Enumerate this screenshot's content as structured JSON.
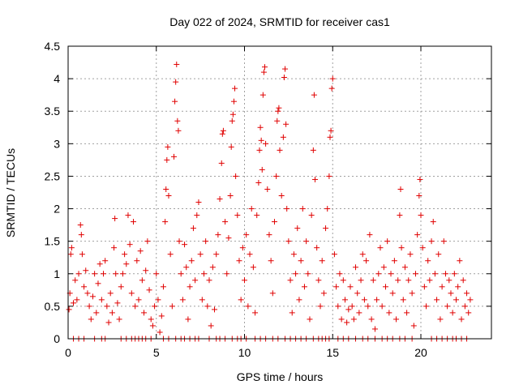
{
  "chart_data": {
    "type": "scatter",
    "title": "Day 022 of 2024, SRMTID for receiver cas1",
    "xlabel": "GPS time / hours",
    "ylabel": "SRMTID / TECUs",
    "xlim": [
      0,
      24
    ],
    "ylim": [
      0,
      4.5
    ],
    "xticks": [
      0,
      5,
      10,
      15,
      20
    ],
    "xtick_labels": [
      "0",
      "5",
      "10",
      "15",
      "20"
    ],
    "yticks": [
      0,
      0.5,
      1,
      1.5,
      2,
      2.5,
      3,
      3.5,
      4,
      4.5
    ],
    "ytick_labels": [
      "0",
      "0.5",
      "1",
      "1.5",
      "2",
      "2.5",
      "3",
      "3.5",
      "4",
      "4.5"
    ],
    "grid": true,
    "marker": "+",
    "color": "#e00000",
    "series": [
      {
        "name": "SRMTID",
        "points": [
          [
            0.05,
            0.45
          ],
          [
            0.1,
            0.7
          ],
          [
            0.15,
            1.3
          ],
          [
            0.2,
            1.4
          ],
          [
            0.3,
            0.55
          ],
          [
            0.4,
            0.9
          ],
          [
            0.5,
            0.6
          ],
          [
            0.6,
            1.0
          ],
          [
            0.7,
            1.75
          ],
          [
            0.75,
            1.6
          ],
          [
            0.8,
            1.3
          ],
          [
            0.9,
            0.8
          ],
          [
            1.0,
            1.05
          ],
          [
            1.1,
            0.7
          ],
          [
            1.2,
            0.5
          ],
          [
            1.3,
            0.3
          ],
          [
            1.4,
            0.65
          ],
          [
            1.5,
            1.0
          ],
          [
            1.6,
            0.4
          ],
          [
            1.7,
            0.85
          ],
          [
            1.8,
            1.15
          ],
          [
            1.9,
            0.6
          ],
          [
            2.0,
            1.0
          ],
          [
            2.1,
            1.2
          ],
          [
            2.2,
            0.5
          ],
          [
            2.3,
            0.25
          ],
          [
            2.4,
            0.7
          ],
          [
            2.5,
            0.4
          ],
          [
            2.6,
            1.4
          ],
          [
            2.65,
            1.85
          ],
          [
            2.7,
            1.0
          ],
          [
            2.8,
            0.55
          ],
          [
            2.9,
            0.3
          ],
          [
            3.0,
            0.8
          ],
          [
            3.1,
            1.0
          ],
          [
            3.2,
            1.3
          ],
          [
            3.3,
            1.15
          ],
          [
            3.4,
            1.9
          ],
          [
            3.5,
            1.45
          ],
          [
            3.6,
            0.7
          ],
          [
            3.7,
            1.8
          ],
          [
            3.8,
            0.5
          ],
          [
            3.9,
            1.2
          ],
          [
            4.0,
            0.6
          ],
          [
            4.1,
            1.35
          ],
          [
            4.2,
            0.9
          ],
          [
            4.3,
            0.4
          ],
          [
            4.4,
            1.05
          ],
          [
            4.5,
            1.5
          ],
          [
            4.6,
            0.75
          ],
          [
            4.7,
            0.3
          ],
          [
            4.8,
            0.2
          ],
          [
            4.9,
            0.5
          ],
          [
            5.0,
            1.0
          ],
          [
            5.1,
            0.6
          ],
          [
            5.2,
            0.1
          ],
          [
            5.3,
            0.35
          ],
          [
            5.4,
            0.8
          ],
          [
            5.5,
            1.8
          ],
          [
            5.55,
            2.3
          ],
          [
            5.6,
            2.75
          ],
          [
            5.65,
            2.95
          ],
          [
            5.7,
            2.2
          ],
          [
            5.8,
            1.3
          ],
          [
            5.9,
            0.5
          ],
          [
            6.0,
            2.8
          ],
          [
            6.05,
            3.65
          ],
          [
            6.1,
            3.95
          ],
          [
            6.15,
            4.22
          ],
          [
            6.2,
            3.35
          ],
          [
            6.25,
            3.2
          ],
          [
            6.3,
            1.5
          ],
          [
            6.4,
            1.0
          ],
          [
            6.5,
            0.6
          ],
          [
            6.6,
            1.45
          ],
          [
            6.7,
            1.1
          ],
          [
            6.8,
            0.3
          ],
          [
            6.9,
            0.8
          ],
          [
            7.0,
            1.2
          ],
          [
            7.1,
            1.7
          ],
          [
            7.2,
            0.9
          ],
          [
            7.3,
            1.9
          ],
          [
            7.4,
            2.1
          ],
          [
            7.5,
            1.3
          ],
          [
            7.6,
            0.6
          ],
          [
            7.7,
            1.0
          ],
          [
            7.8,
            1.5
          ],
          [
            7.9,
            0.5
          ],
          [
            8.0,
            0.9
          ],
          [
            8.1,
            0.2
          ],
          [
            8.2,
            1.1
          ],
          [
            8.3,
            0.45
          ],
          [
            8.4,
            1.3
          ],
          [
            8.5,
            1.6
          ],
          [
            8.6,
            2.15
          ],
          [
            8.7,
            2.7
          ],
          [
            8.75,
            3.15
          ],
          [
            8.8,
            3.2
          ],
          [
            8.9,
            1.8
          ],
          [
            9.0,
            1.0
          ],
          [
            9.1,
            1.55
          ],
          [
            9.2,
            2.2
          ],
          [
            9.25,
            2.95
          ],
          [
            9.3,
            3.35
          ],
          [
            9.35,
            3.45
          ],
          [
            9.4,
            3.65
          ],
          [
            9.45,
            3.85
          ],
          [
            9.5,
            2.5
          ],
          [
            9.6,
            1.9
          ],
          [
            9.7,
            1.2
          ],
          [
            9.8,
            0.6
          ],
          [
            9.9,
            1.4
          ],
          [
            10.0,
            0.9
          ],
          [
            10.1,
            1.6
          ],
          [
            10.2,
            0.5
          ],
          [
            10.3,
            1.3
          ],
          [
            10.4,
            2.0
          ],
          [
            10.5,
            1.1
          ],
          [
            10.6,
            0.4
          ],
          [
            10.7,
            1.9
          ],
          [
            10.8,
            2.4
          ],
          [
            10.85,
            2.9
          ],
          [
            10.9,
            3.25
          ],
          [
            10.95,
            3.05
          ],
          [
            11.0,
            2.6
          ],
          [
            11.05,
            3.75
          ],
          [
            11.1,
            4.1
          ],
          [
            11.15,
            4.18
          ],
          [
            11.2,
            3.0
          ],
          [
            11.3,
            2.3
          ],
          [
            11.4,
            1.6
          ],
          [
            11.5,
            1.2
          ],
          [
            11.6,
            0.7
          ],
          [
            11.7,
            1.8
          ],
          [
            11.8,
            2.5
          ],
          [
            11.85,
            3.35
          ],
          [
            11.9,
            3.5
          ],
          [
            11.95,
            3.55
          ],
          [
            12.0,
            2.9
          ],
          [
            12.1,
            2.2
          ],
          [
            12.2,
            3.1
          ],
          [
            12.25,
            4.02
          ],
          [
            12.3,
            4.15
          ],
          [
            12.35,
            3.3
          ],
          [
            12.4,
            2.0
          ],
          [
            12.5,
            1.5
          ],
          [
            12.6,
            0.9
          ],
          [
            12.7,
            0.4
          ],
          [
            12.8,
            1.3
          ],
          [
            12.9,
            1.0
          ],
          [
            13.0,
            1.7
          ],
          [
            13.1,
            0.6
          ],
          [
            13.2,
            1.2
          ],
          [
            13.3,
            2.0
          ],
          [
            13.4,
            0.8
          ],
          [
            13.5,
            1.5
          ],
          [
            13.6,
            1.0
          ],
          [
            13.7,
            0.3
          ],
          [
            13.8,
            1.9
          ],
          [
            13.9,
            2.9
          ],
          [
            13.95,
            3.75
          ],
          [
            14.0,
            2.45
          ],
          [
            14.1,
            1.4
          ],
          [
            14.2,
            0.9
          ],
          [
            14.3,
            0.5
          ],
          [
            14.4,
            1.2
          ],
          [
            14.5,
            0.7
          ],
          [
            14.6,
            1.7
          ],
          [
            14.7,
            2.0
          ],
          [
            14.8,
            2.5
          ],
          [
            14.85,
            3.1
          ],
          [
            14.9,
            3.2
          ],
          [
            14.95,
            3.85
          ],
          [
            15.0,
            4.0
          ],
          [
            15.1,
            1.3
          ],
          [
            15.2,
            0.8
          ],
          [
            15.3,
            0.5
          ],
          [
            15.4,
            1.0
          ],
          [
            15.5,
            0.3
          ],
          [
            15.6,
            0.9
          ],
          [
            15.7,
            0.6
          ],
          [
            15.8,
            0.25
          ],
          [
            15.9,
            0.45
          ],
          [
            16.0,
            0.8
          ],
          [
            16.1,
            0.5
          ],
          [
            16.2,
            0.3
          ],
          [
            16.3,
            1.1
          ],
          [
            16.4,
            0.7
          ],
          [
            16.5,
            0.4
          ],
          [
            16.6,
            0.9
          ],
          [
            16.7,
            1.3
          ],
          [
            16.8,
            0.6
          ],
          [
            16.9,
            1.2
          ],
          [
            17.0,
            0.5
          ],
          [
            17.1,
            1.6
          ],
          [
            17.2,
            0.3
          ],
          [
            17.3,
            0.9
          ],
          [
            17.4,
            0.15
          ],
          [
            17.5,
            0.6
          ],
          [
            17.6,
            1.0
          ],
          [
            17.7,
            1.4
          ],
          [
            17.8,
            0.5
          ],
          [
            17.9,
            1.1
          ],
          [
            18.0,
            0.8
          ],
          [
            18.1,
            1.5
          ],
          [
            18.2,
            0.4
          ],
          [
            18.3,
            1.0
          ],
          [
            18.4,
            0.7
          ],
          [
            18.5,
            1.2
          ],
          [
            18.6,
            0.3
          ],
          [
            18.7,
            0.9
          ],
          [
            18.8,
            1.9
          ],
          [
            18.85,
            2.3
          ],
          [
            18.9,
            1.4
          ],
          [
            19.0,
            0.6
          ],
          [
            19.1,
            1.1
          ],
          [
            19.2,
            0.4
          ],
          [
            19.3,
            0.9
          ],
          [
            19.4,
            1.3
          ],
          [
            19.5,
            0.7
          ],
          [
            19.6,
            0.2
          ],
          [
            19.7,
            1.0
          ],
          [
            19.8,
            1.6
          ],
          [
            19.9,
            2.2
          ],
          [
            19.95,
            2.45
          ],
          [
            20.0,
            1.9
          ],
          [
            20.1,
            1.4
          ],
          [
            20.2,
            0.8
          ],
          [
            20.3,
            0.5
          ],
          [
            20.4,
            1.2
          ],
          [
            20.5,
            0.9
          ],
          [
            20.6,
            1.5
          ],
          [
            20.7,
            1.8
          ],
          [
            20.8,
            1.0
          ],
          [
            20.9,
            0.6
          ],
          [
            21.0,
            1.3
          ],
          [
            21.1,
            0.3
          ],
          [
            21.2,
            0.8
          ],
          [
            21.3,
            1.5
          ],
          [
            21.4,
            1.0
          ],
          [
            21.5,
            0.5
          ],
          [
            21.6,
            0.9
          ],
          [
            21.7,
            0.7
          ],
          [
            21.8,
            0.4
          ],
          [
            21.9,
            1.0
          ],
          [
            22.0,
            0.6
          ],
          [
            22.1,
            0.8
          ],
          [
            22.2,
            1.2
          ],
          [
            22.3,
            0.3
          ],
          [
            22.4,
            0.9
          ],
          [
            22.5,
            0.5
          ],
          [
            22.6,
            0.7
          ],
          [
            22.7,
            0.4
          ],
          [
            22.8,
            0.6
          ],
          [
            0.3,
            0
          ],
          [
            0.6,
            0
          ],
          [
            0.9,
            0
          ],
          [
            1.5,
            0
          ],
          [
            1.9,
            0
          ],
          [
            2.1,
            0
          ],
          [
            3.0,
            0
          ],
          [
            3.3,
            0
          ],
          [
            3.6,
            0
          ],
          [
            3.8,
            0
          ],
          [
            4.0,
            0
          ],
          [
            4.2,
            0
          ],
          [
            4.4,
            0
          ],
          [
            4.7,
            0
          ],
          [
            5.4,
            0
          ],
          [
            5.7,
            0
          ],
          [
            6.1,
            0
          ],
          [
            6.4,
            0
          ],
          [
            6.6,
            0
          ],
          [
            6.9,
            0
          ],
          [
            7.2,
            0
          ],
          [
            7.4,
            0
          ],
          [
            8.0,
            0
          ],
          [
            8.4,
            0
          ],
          [
            8.6,
            0
          ],
          [
            8.9,
            0
          ],
          [
            9.3,
            0
          ],
          [
            9.6,
            0
          ],
          [
            9.8,
            0
          ],
          [
            10.1,
            0
          ],
          [
            10.6,
            0
          ],
          [
            10.9,
            0
          ],
          [
            11.2,
            0
          ],
          [
            11.6,
            0
          ],
          [
            11.9,
            0
          ],
          [
            12.3,
            0
          ],
          [
            12.6,
            0
          ],
          [
            12.9,
            0
          ],
          [
            13.2,
            0
          ],
          [
            13.5,
            0
          ],
          [
            13.9,
            0
          ],
          [
            14.2,
            0
          ],
          [
            14.4,
            0
          ],
          [
            14.6,
            0
          ],
          [
            14.8,
            0
          ],
          [
            15.3,
            0
          ],
          [
            15.6,
            0
          ],
          [
            15.9,
            0
          ],
          [
            16.3,
            0
          ],
          [
            16.7,
            0
          ],
          [
            17.0,
            0
          ],
          [
            17.4,
            0
          ],
          [
            17.8,
            0
          ],
          [
            18.1,
            0
          ],
          [
            18.4,
            0
          ],
          [
            18.8,
            0
          ],
          [
            19.1,
            0
          ],
          [
            19.5,
            0
          ],
          [
            20.6,
            0
          ],
          [
            20.9,
            0
          ],
          [
            21.2,
            0
          ],
          [
            21.5,
            0
          ],
          [
            21.8,
            0
          ],
          [
            22.0,
            0
          ],
          [
            22.3,
            0
          ],
          [
            22.6,
            0
          ]
        ]
      }
    ]
  }
}
